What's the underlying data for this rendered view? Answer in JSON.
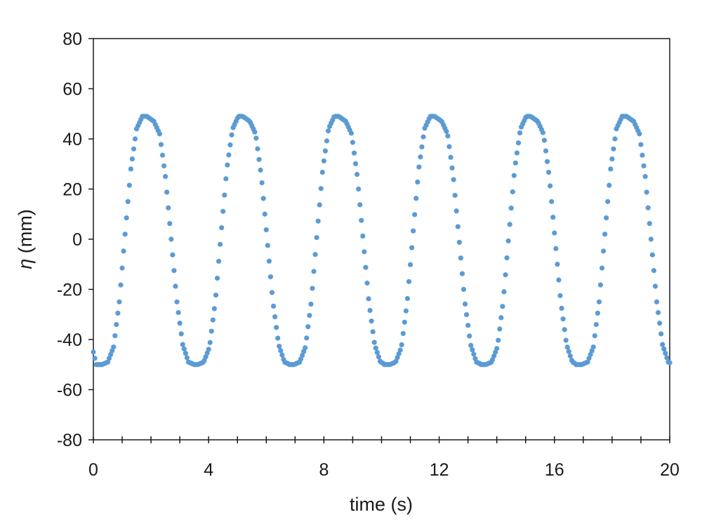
{
  "chart_data": {
    "type": "scatter",
    "title": "",
    "xlabel": "time (s)",
    "ylabel_symbol": "η",
    "ylabel_unit": "(mm)",
    "xlim": [
      0,
      20
    ],
    "ylim": [
      -80,
      80
    ],
    "x_ticks": [
      0,
      4,
      8,
      12,
      16,
      20
    ],
    "x_minor_tick_step": 1,
    "y_ticks": [
      -80,
      -60,
      -40,
      -20,
      0,
      20,
      40,
      60,
      80
    ],
    "x_tick_labels": [
      "0",
      "4",
      "8",
      "12",
      "16",
      "20"
    ],
    "y_tick_labels": [
      "-80",
      "-60",
      "-40",
      "-20",
      "0",
      "20",
      "40",
      "60",
      "80"
    ],
    "grid": false,
    "legend": "none",
    "series_color": "#5b9bd5",
    "sample_interval_s": 0.05,
    "series": [
      {
        "period_s": 3.33,
        "x": [
          0.0,
          0.1,
          0.3,
          0.5,
          0.7,
          0.9,
          1.1,
          1.3,
          1.5,
          1.7,
          1.85,
          2.1,
          2.3,
          2.5,
          2.7,
          2.9,
          3.1,
          3.3,
          3.5
        ],
        "y": [
          -45,
          -50,
          -50,
          -49,
          -43,
          -25,
          2,
          28,
          44,
          49,
          49,
          47,
          42,
          25,
          0,
          -25,
          -42,
          -49,
          -50
        ]
      }
    ]
  }
}
